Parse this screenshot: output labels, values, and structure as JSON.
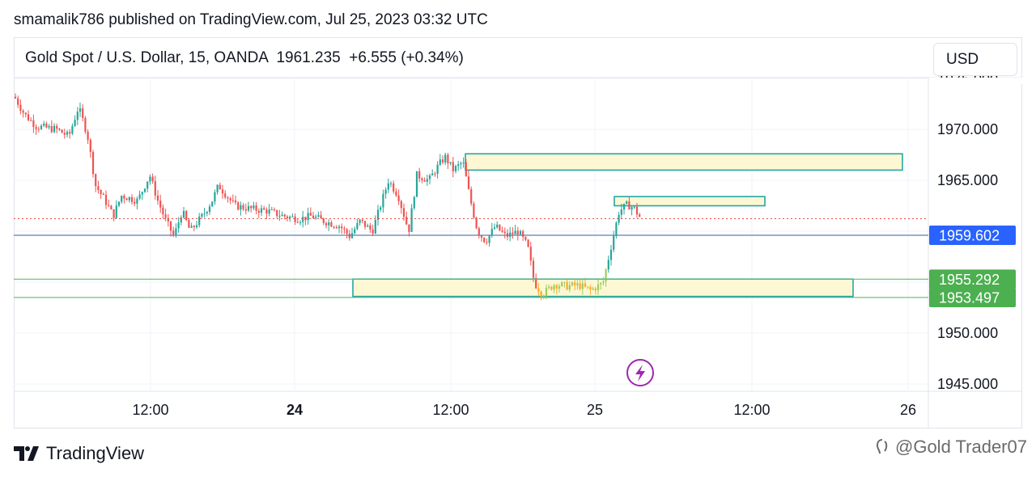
{
  "header": {
    "publisher_text": "smamalik786 published on TradingView.com, Jul 25, 2023 03:32 UTC",
    "symbol_text": "Gold Spot / U.S. Dollar, 15, OANDA  1961.235  +6.555 (+0.34%)",
    "currency_label": "USD"
  },
  "chart_data": {
    "type": "candlestick",
    "symbol": "Gold Spot / U.S. Dollar",
    "interval": "15",
    "exchange": "OANDA",
    "last_price": 1961.235,
    "change": 6.555,
    "change_percent": "+0.34%",
    "y_ticks": [
      "1970.000",
      "1965.000",
      "1950.000",
      "1945.000"
    ],
    "x_ticks": [
      "12:00",
      "24",
      "12:00",
      "25",
      "12:00",
      "26"
    ],
    "price_labels": [
      {
        "text": "1959.602",
        "value": 1959.602,
        "color": "#2962ff"
      },
      {
        "text": "1955.292",
        "value": 1955.292,
        "color": "#4caf50"
      },
      {
        "text": "1953.497",
        "value": 1953.497,
        "color": "#4caf50"
      }
    ],
    "horizontal_lines": [
      {
        "value": 1959.602,
        "color": "#5b7fb5",
        "style": "solid"
      },
      {
        "value": 1955.292,
        "color": "#66bb6a",
        "style": "solid"
      },
      {
        "value": 1953.497,
        "color": "#66bb6a",
        "style": "solid"
      },
      {
        "value": 1961.235,
        "color": "#ef5350",
        "style": "dotted"
      }
    ],
    "zones": [
      {
        "low": 1966.0,
        "high": 1967.6
      },
      {
        "low": 1962.5,
        "high": 1963.4
      },
      {
        "low": 1953.6,
        "high": 1955.3
      }
    ],
    "up_color": "#26a69a",
    "down_color": "#ef5350",
    "zone_fill": "#fdf8d3",
    "zone_border": "#26a6a6"
  },
  "footer": {
    "brand_label": "TradingView",
    "watermark_text": "@Gold Trader07"
  },
  "icons": [
    "tradingview-logo-icon",
    "lightning-icon",
    "watermark-icon"
  ]
}
